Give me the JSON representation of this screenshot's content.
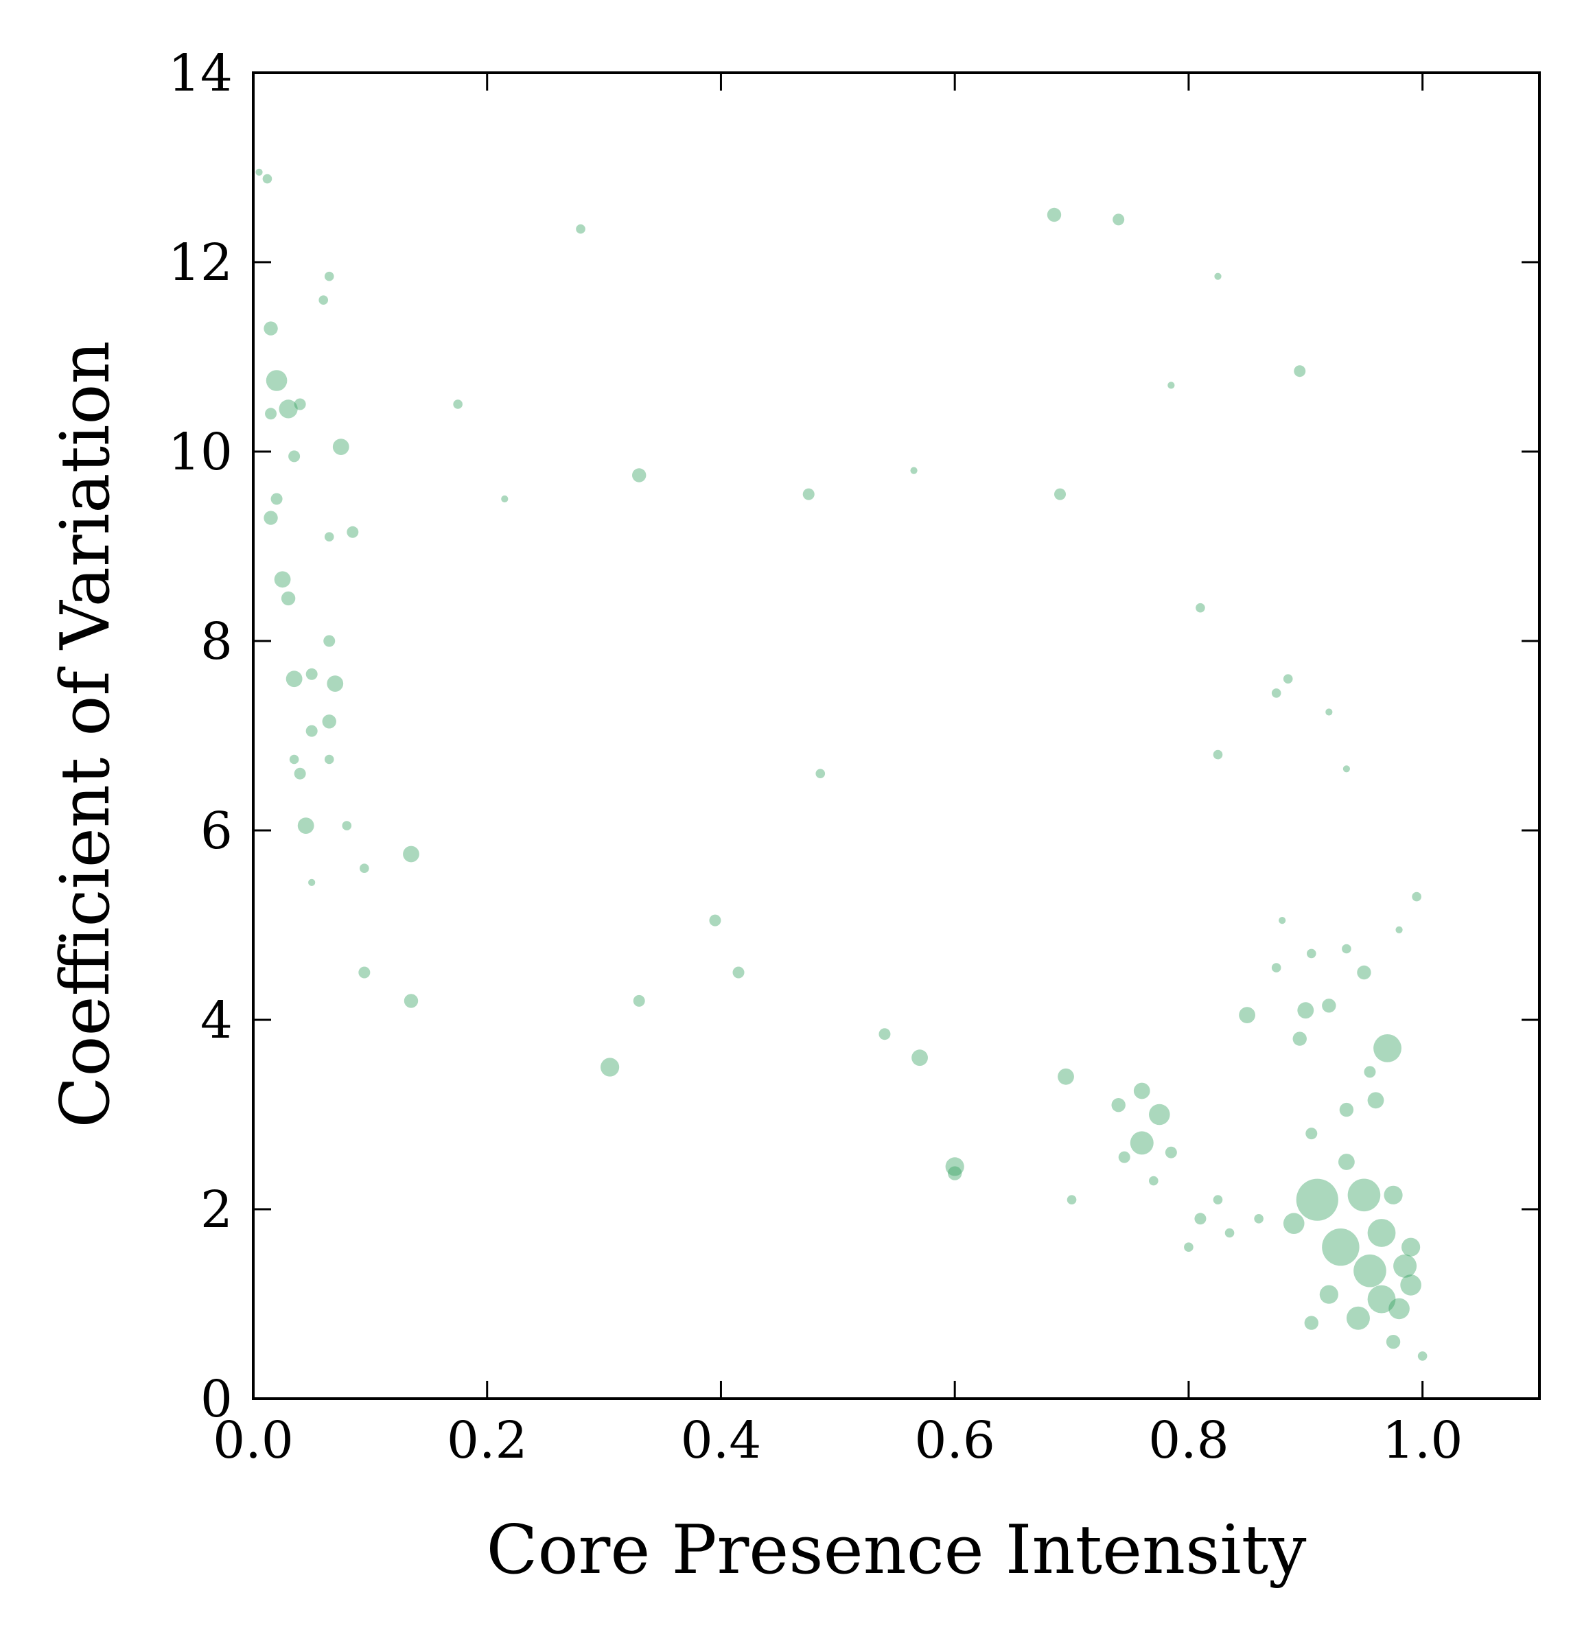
{
  "chart_data": {
    "type": "scatter",
    "title": "",
    "xlabel": "Core Presence Intensity",
    "ylabel": "Coefficient of Variation",
    "xlim": [
      0.0,
      1.1
    ],
    "ylim": [
      0,
      14
    ],
    "xticks": [
      0.0,
      0.2,
      0.4,
      0.6,
      0.8,
      1.0
    ],
    "xtick_labels": [
      "0.0",
      "0.2",
      "0.4",
      "0.6",
      "0.8",
      "1.0"
    ],
    "yticks": [
      0,
      2,
      4,
      6,
      8,
      10,
      12,
      14
    ],
    "ytick_labels": [
      "0",
      "2",
      "4",
      "6",
      "8",
      "10",
      "12",
      "14"
    ],
    "grid": false,
    "legend": "none",
    "marker_color": "#2e9e5b",
    "marker_alpha": 0.4,
    "series": [
      {
        "values_note_free": true,
        "points": [
          {
            "x": 0.005,
            "y": 12.95,
            "s": 3
          },
          {
            "x": 0.012,
            "y": 12.88,
            "s": 4
          },
          {
            "x": 0.015,
            "y": 11.3,
            "s": 6
          },
          {
            "x": 0.02,
            "y": 10.75,
            "s": 9
          },
          {
            "x": 0.015,
            "y": 10.4,
            "s": 5
          },
          {
            "x": 0.03,
            "y": 10.45,
            "s": 8
          },
          {
            "x": 0.04,
            "y": 10.5,
            "s": 5
          },
          {
            "x": 0.035,
            "y": 9.95,
            "s": 5
          },
          {
            "x": 0.015,
            "y": 9.3,
            "s": 6
          },
          {
            "x": 0.02,
            "y": 9.5,
            "s": 5
          },
          {
            "x": 0.025,
            "y": 8.65,
            "s": 7
          },
          {
            "x": 0.03,
            "y": 8.45,
            "s": 6
          },
          {
            "x": 0.065,
            "y": 8.0,
            "s": 5
          },
          {
            "x": 0.035,
            "y": 7.6,
            "s": 7
          },
          {
            "x": 0.05,
            "y": 7.65,
            "s": 5
          },
          {
            "x": 0.07,
            "y": 7.55,
            "s": 7
          },
          {
            "x": 0.065,
            "y": 7.15,
            "s": 6
          },
          {
            "x": 0.05,
            "y": 7.05,
            "s": 5
          },
          {
            "x": 0.035,
            "y": 6.75,
            "s": 4
          },
          {
            "x": 0.04,
            "y": 6.6,
            "s": 5
          },
          {
            "x": 0.065,
            "y": 6.75,
            "s": 4
          },
          {
            "x": 0.045,
            "y": 6.05,
            "s": 7
          },
          {
            "x": 0.08,
            "y": 6.05,
            "s": 4
          },
          {
            "x": 0.075,
            "y": 10.05,
            "s": 7
          },
          {
            "x": 0.085,
            "y": 9.15,
            "s": 5
          },
          {
            "x": 0.065,
            "y": 9.1,
            "s": 4
          },
          {
            "x": 0.065,
            "y": 11.85,
            "s": 4
          },
          {
            "x": 0.06,
            "y": 11.6,
            "s": 4
          },
          {
            "x": 0.05,
            "y": 5.45,
            "s": 3
          },
          {
            "x": 0.095,
            "y": 5.6,
            "s": 4
          },
          {
            "x": 0.135,
            "y": 5.75,
            "s": 7
          },
          {
            "x": 0.135,
            "y": 4.2,
            "s": 6
          },
          {
            "x": 0.095,
            "y": 4.5,
            "s": 5
          },
          {
            "x": 0.175,
            "y": 10.5,
            "s": 4
          },
          {
            "x": 0.28,
            "y": 12.35,
            "s": 4
          },
          {
            "x": 0.215,
            "y": 9.5,
            "s": 3
          },
          {
            "x": 0.33,
            "y": 9.75,
            "s": 6
          },
          {
            "x": 0.305,
            "y": 3.5,
            "s": 8
          },
          {
            "x": 0.33,
            "y": 4.2,
            "s": 5
          },
          {
            "x": 0.395,
            "y": 5.05,
            "s": 5
          },
          {
            "x": 0.415,
            "y": 4.5,
            "s": 5
          },
          {
            "x": 0.475,
            "y": 9.55,
            "s": 5
          },
          {
            "x": 0.485,
            "y": 6.6,
            "s": 4
          },
          {
            "x": 0.54,
            "y": 3.85,
            "s": 5
          },
          {
            "x": 0.57,
            "y": 3.6,
            "s": 7
          },
          {
            "x": 0.6,
            "y": 2.45,
            "s": 8
          },
          {
            "x": 0.6,
            "y": 2.38,
            "s": 6
          },
          {
            "x": 0.565,
            "y": 9.8,
            "s": 3
          },
          {
            "x": 0.685,
            "y": 12.5,
            "s": 6
          },
          {
            "x": 0.74,
            "y": 12.45,
            "s": 5
          },
          {
            "x": 0.69,
            "y": 9.55,
            "s": 5
          },
          {
            "x": 0.695,
            "y": 3.4,
            "s": 7
          },
          {
            "x": 0.74,
            "y": 3.1,
            "s": 6
          },
          {
            "x": 0.76,
            "y": 3.25,
            "s": 7
          },
          {
            "x": 0.775,
            "y": 3.0,
            "s": 9
          },
          {
            "x": 0.76,
            "y": 2.7,
            "s": 10
          },
          {
            "x": 0.785,
            "y": 2.6,
            "s": 5
          },
          {
            "x": 0.745,
            "y": 2.55,
            "s": 5
          },
          {
            "x": 0.7,
            "y": 2.1,
            "s": 4
          },
          {
            "x": 0.77,
            "y": 2.3,
            "s": 4
          },
          {
            "x": 0.825,
            "y": 11.85,
            "s": 3
          },
          {
            "x": 0.785,
            "y": 10.7,
            "s": 3
          },
          {
            "x": 0.81,
            "y": 8.35,
            "s": 4
          },
          {
            "x": 0.825,
            "y": 6.8,
            "s": 4
          },
          {
            "x": 0.895,
            "y": 10.85,
            "s": 5
          },
          {
            "x": 0.885,
            "y": 7.6,
            "s": 4
          },
          {
            "x": 0.875,
            "y": 7.45,
            "s": 4
          },
          {
            "x": 0.92,
            "y": 7.25,
            "s": 3
          },
          {
            "x": 0.935,
            "y": 6.65,
            "s": 3
          },
          {
            "x": 0.995,
            "y": 5.3,
            "s": 4
          },
          {
            "x": 0.98,
            "y": 4.95,
            "s": 3
          },
          {
            "x": 0.88,
            "y": 5.05,
            "s": 3
          },
          {
            "x": 0.905,
            "y": 4.7,
            "s": 4
          },
          {
            "x": 0.935,
            "y": 4.75,
            "s": 4
          },
          {
            "x": 0.95,
            "y": 4.5,
            "s": 6
          },
          {
            "x": 0.875,
            "y": 4.55,
            "s": 4
          },
          {
            "x": 0.85,
            "y": 4.05,
            "s": 7
          },
          {
            "x": 0.9,
            "y": 4.1,
            "s": 7
          },
          {
            "x": 0.92,
            "y": 4.15,
            "s": 6
          },
          {
            "x": 0.895,
            "y": 3.8,
            "s": 6
          },
          {
            "x": 0.97,
            "y": 3.7,
            "s": 12
          },
          {
            "x": 0.96,
            "y": 3.15,
            "s": 7
          },
          {
            "x": 0.935,
            "y": 3.05,
            "s": 6
          },
          {
            "x": 0.955,
            "y": 3.45,
            "s": 5
          },
          {
            "x": 0.905,
            "y": 2.8,
            "s": 5
          },
          {
            "x": 0.935,
            "y": 2.5,
            "s": 7
          },
          {
            "x": 0.91,
            "y": 2.1,
            "s": 18
          },
          {
            "x": 0.95,
            "y": 2.15,
            "s": 14
          },
          {
            "x": 0.975,
            "y": 2.15,
            "s": 8
          },
          {
            "x": 0.89,
            "y": 1.85,
            "s": 9
          },
          {
            "x": 0.93,
            "y": 1.6,
            "s": 16
          },
          {
            "x": 0.965,
            "y": 1.75,
            "s": 12
          },
          {
            "x": 0.955,
            "y": 1.35,
            "s": 14
          },
          {
            "x": 0.985,
            "y": 1.4,
            "s": 10
          },
          {
            "x": 0.99,
            "y": 1.6,
            "s": 8
          },
          {
            "x": 0.965,
            "y": 1.05,
            "s": 12
          },
          {
            "x": 0.945,
            "y": 0.85,
            "s": 10
          },
          {
            "x": 0.98,
            "y": 0.95,
            "s": 9
          },
          {
            "x": 0.99,
            "y": 1.2,
            "s": 9
          },
          {
            "x": 0.92,
            "y": 1.1,
            "s": 8
          },
          {
            "x": 0.905,
            "y": 0.8,
            "s": 6
          },
          {
            "x": 0.975,
            "y": 0.6,
            "s": 6
          },
          {
            "x": 1.0,
            "y": 0.45,
            "s": 4
          },
          {
            "x": 0.81,
            "y": 1.9,
            "s": 5
          },
          {
            "x": 0.825,
            "y": 2.1,
            "s": 4
          },
          {
            "x": 0.835,
            "y": 1.75,
            "s": 4
          },
          {
            "x": 0.86,
            "y": 1.9,
            "s": 4
          },
          {
            "x": 0.8,
            "y": 1.6,
            "s": 4
          }
        ]
      }
    ]
  }
}
